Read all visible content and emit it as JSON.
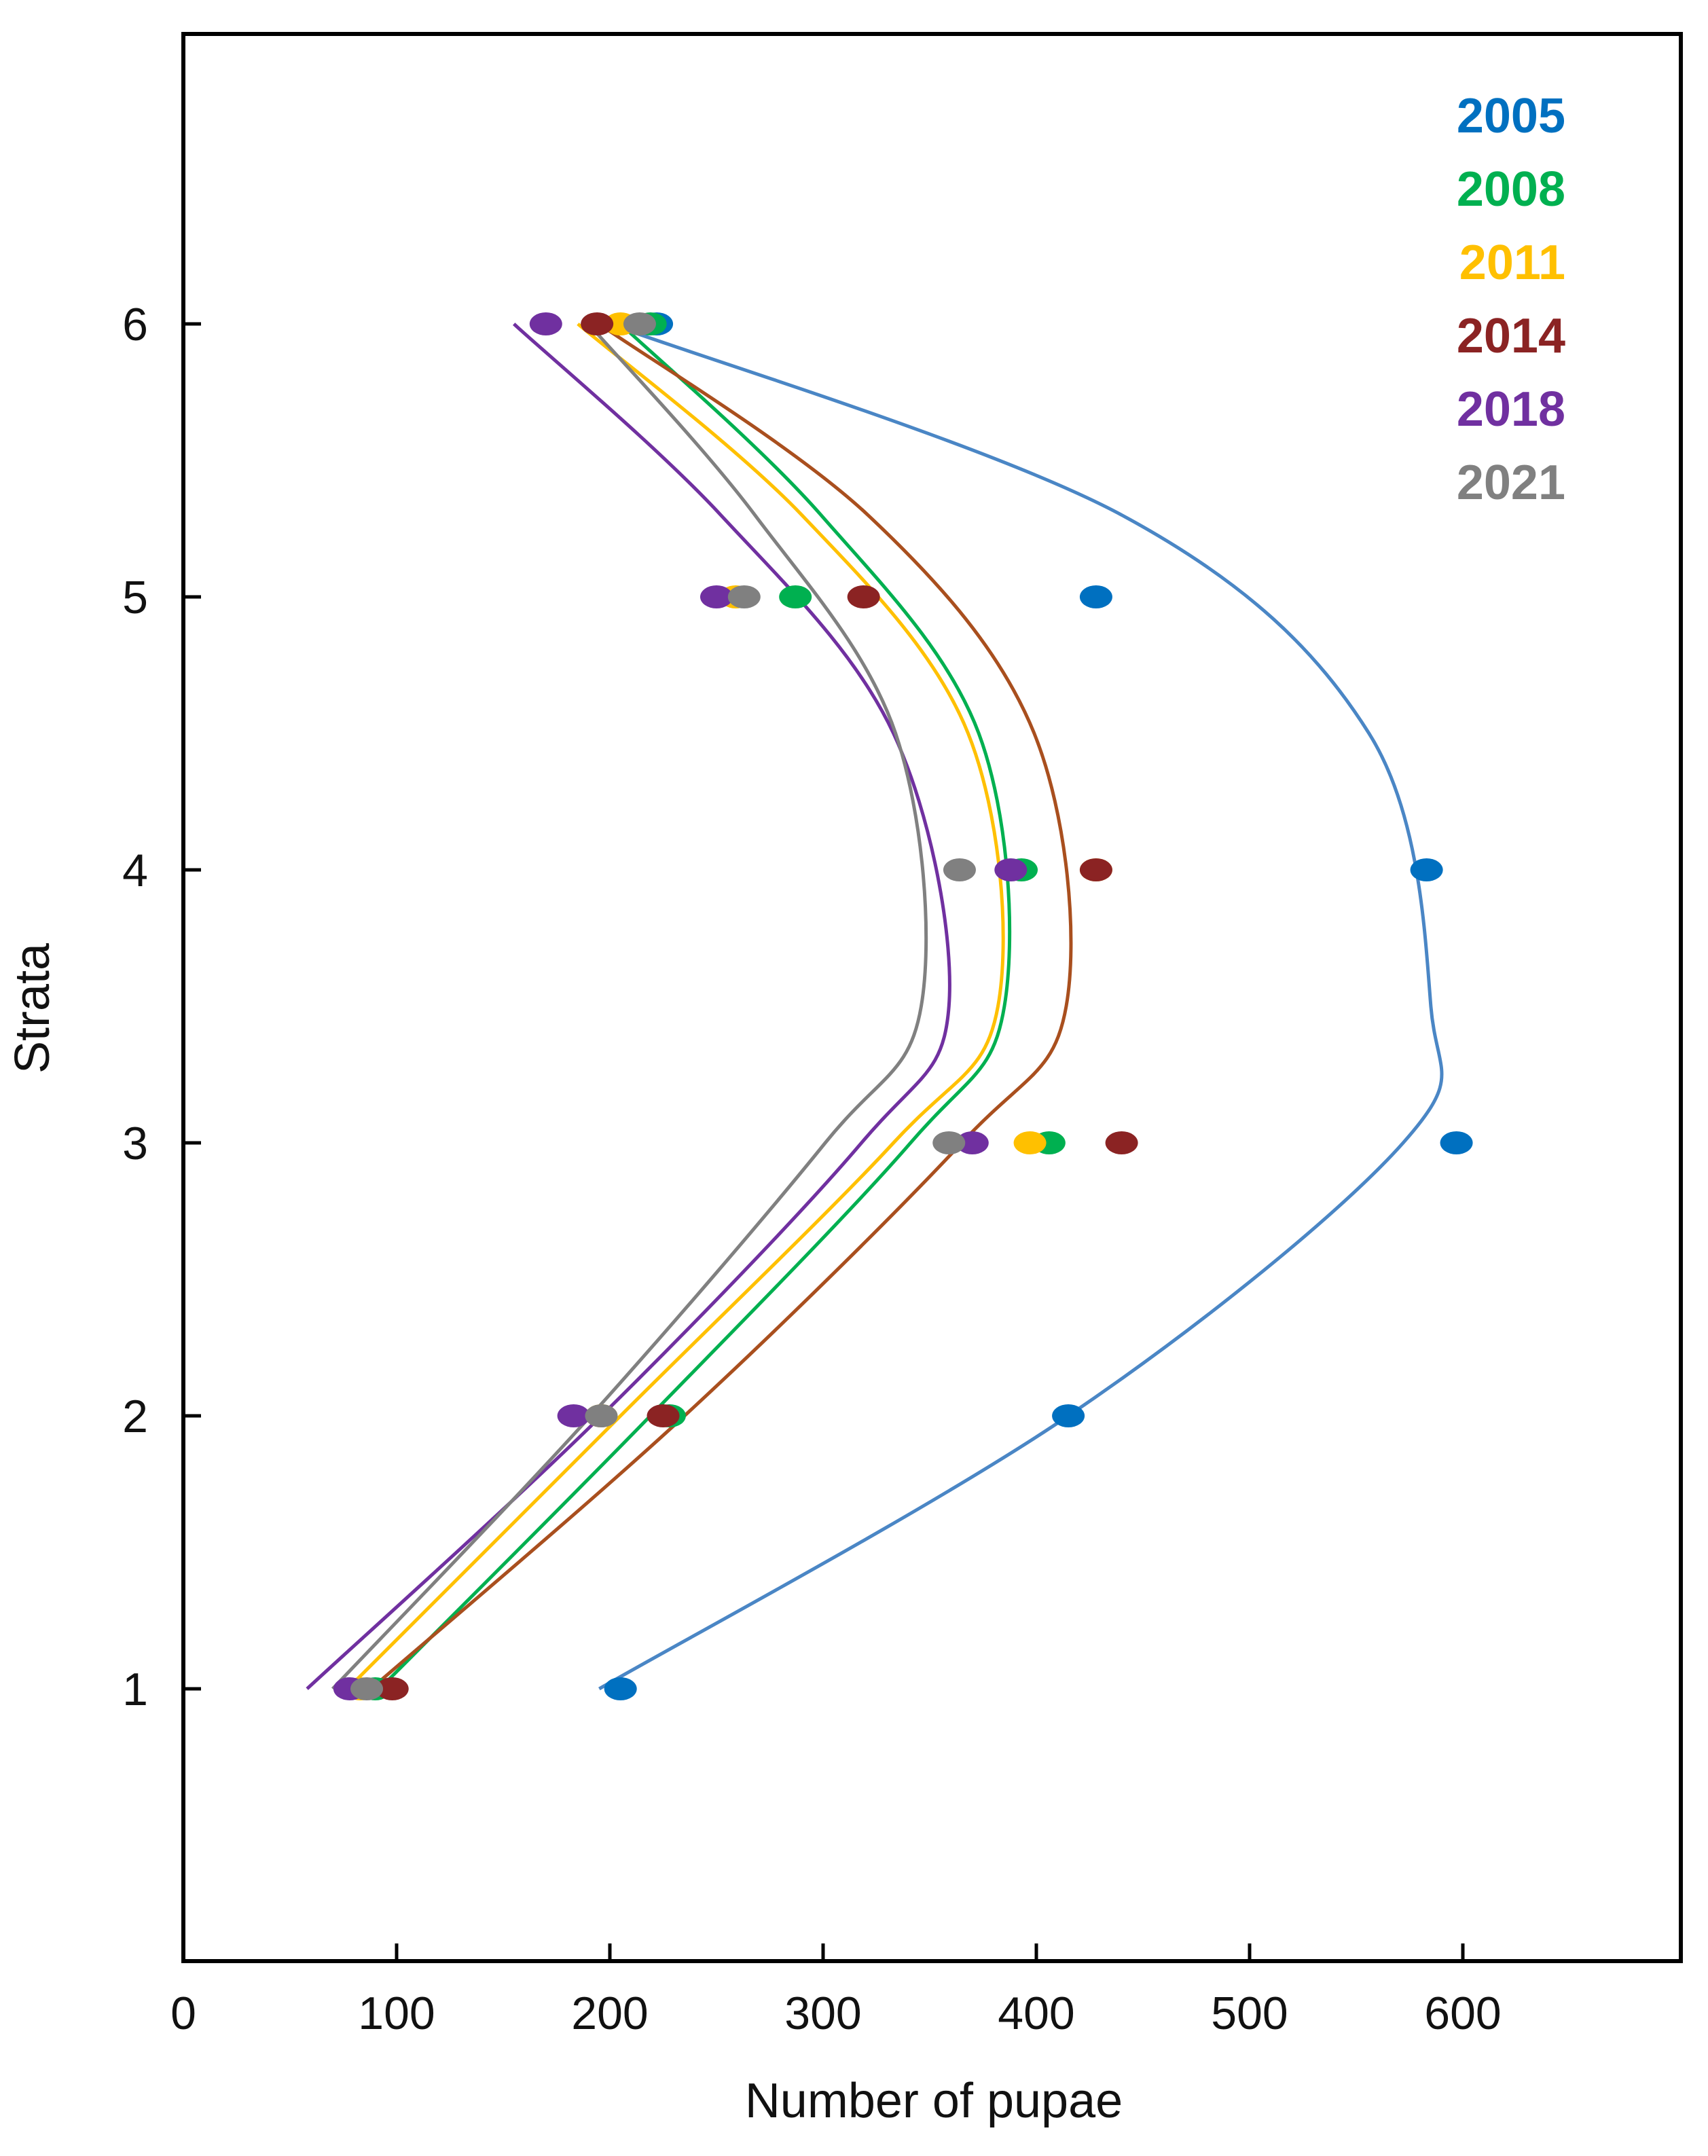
{
  "chart_data": {
    "type": "scatter",
    "title": "",
    "xlabel": "Number of pupae",
    "ylabel": "Strata",
    "xlim": [
      0,
      700
    ],
    "ylim": [
      0,
      7
    ],
    "xticks": [
      0,
      100,
      200,
      300,
      400,
      500,
      600
    ],
    "yticks": [
      1,
      2,
      3,
      4,
      5,
      6
    ],
    "legend_position": "top-right",
    "series": [
      {
        "name": "2005",
        "point_color": "#0070C0",
        "line_color": "#4A86C5",
        "points": [
          [
            205,
            1
          ],
          [
            415,
            2
          ],
          [
            597,
            3
          ],
          [
            583,
            4
          ],
          [
            428,
            5
          ],
          [
            222,
            6
          ]
        ],
        "curve": [
          [
            195,
            1
          ],
          [
            415,
            2
          ],
          [
            572,
            3
          ],
          [
            585,
            3.5
          ],
          [
            556,
            4.5
          ],
          [
            440,
            5.3
          ],
          [
            200,
            6
          ]
        ]
      },
      {
        "name": "2008",
        "point_color": "#00B050",
        "line_color": "#00B050",
        "points": [
          [
            90,
            1
          ],
          [
            228,
            2
          ],
          [
            406,
            3
          ],
          [
            393,
            4
          ],
          [
            287,
            5
          ],
          [
            219,
            6
          ]
        ],
        "curve": [
          [
            92,
            1
          ],
          [
            219,
            2
          ],
          [
            341,
            3
          ],
          [
            385,
            3.5
          ],
          [
            373,
            4.5
          ],
          [
            299,
            5.3
          ],
          [
            205,
            6
          ]
        ]
      },
      {
        "name": "2011",
        "point_color": "#FFC000",
        "line_color": "#FFC000",
        "points": [
          [
            83,
            1
          ],
          [
            196,
            2
          ],
          [
            397,
            3
          ],
          [
            428,
            4
          ],
          [
            259,
            5
          ],
          [
            205,
            6
          ]
        ],
        "curve": [
          [
            77,
            1
          ],
          [
            205,
            2
          ],
          [
            333,
            3
          ],
          [
            382,
            3.5
          ],
          [
            368,
            4.5
          ],
          [
            290,
            5.3
          ],
          [
            185,
            6
          ]
        ]
      },
      {
        "name": "2014",
        "point_color": "#8B2323",
        "line_color": "#A94F1E",
        "points": [
          [
            98,
            1
          ],
          [
            225,
            2
          ],
          [
            440,
            3
          ],
          [
            428,
            4
          ],
          [
            319,
            5
          ],
          [
            194,
            6
          ]
        ],
        "curve": [
          [
            88,
            1
          ],
          [
            235,
            2
          ],
          [
            365,
            3
          ],
          [
            414,
            3.5
          ],
          [
            399,
            4.5
          ],
          [
            321,
            5.3
          ],
          [
            195,
            6
          ]
        ]
      },
      {
        "name": "2018",
        "point_color": "#7030A0",
        "line_color": "#7030A0",
        "points": [
          [
            78,
            1
          ],
          [
            183,
            2
          ],
          [
            370,
            3
          ],
          [
            388,
            4
          ],
          [
            250,
            5
          ],
          [
            170,
            6
          ]
        ],
        "curve": [
          [
            58,
            1
          ],
          [
            196,
            2
          ],
          [
            318,
            3
          ],
          [
            359,
            3.5
          ],
          [
            333,
            4.5
          ],
          [
            252,
            5.3
          ],
          [
            155,
            6
          ]
        ]
      },
      {
        "name": "2021",
        "point_color": "#808080",
        "line_color": "#808080",
        "points": [
          [
            86,
            1
          ],
          [
            196,
            2
          ],
          [
            359,
            3
          ],
          [
            364,
            4
          ],
          [
            263,
            5
          ],
          [
            214,
            6
          ]
        ],
        "curve": [
          [
            70,
            1
          ],
          [
            191,
            2
          ],
          [
            301,
            3
          ],
          [
            346,
            3.5
          ],
          [
            334,
            4.5
          ],
          [
            268,
            5.3
          ],
          [
            190,
            6
          ]
        ]
      }
    ]
  }
}
